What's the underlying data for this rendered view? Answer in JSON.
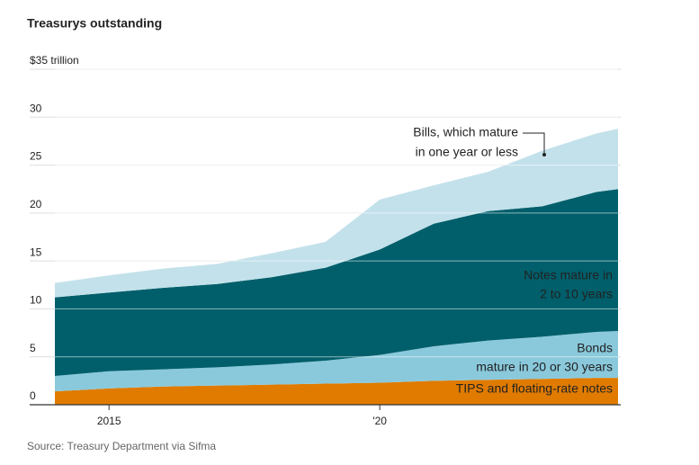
{
  "chart_data": {
    "type": "stacked-area",
    "title": "Treasurys outstanding",
    "source": "Source: Treasury Department via Sifma",
    "x": [
      2014,
      2015,
      2016,
      2017,
      2018,
      2019,
      2020,
      2021,
      2022,
      2023,
      2024,
      2024.4
    ],
    "xlim": [
      2014,
      2024.4
    ],
    "xticks": [
      2015,
      {
        "value": 2020,
        "label": "'20"
      }
    ],
    "ylim": [
      0,
      35
    ],
    "yticks": [
      0,
      5,
      10,
      15,
      20,
      25,
      30,
      {
        "value": 35,
        "label": "$35 trillion"
      }
    ],
    "grid": true,
    "series": [
      {
        "name": [
          "TIPS and floating-rate notes"
        ],
        "color": "#e07b00",
        "values": [
          1.4,
          1.7,
          1.9,
          2.0,
          2.1,
          2.2,
          2.3,
          2.5,
          2.6,
          2.7,
          2.8,
          2.8
        ]
      },
      {
        "name": [
          "Bonds",
          "mature in 20 or 30 years"
        ],
        "color": "#8ac9dc",
        "values": [
          1.6,
          1.8,
          1.8,
          1.9,
          2.1,
          2.4,
          2.9,
          3.6,
          4.1,
          4.4,
          4.8,
          4.9
        ]
      },
      {
        "name": [
          "Notes mature in",
          "2 to 10 years"
        ],
        "color": "#005f6b",
        "values": [
          8.2,
          8.2,
          8.5,
          8.7,
          9.1,
          9.7,
          11.0,
          12.8,
          13.5,
          13.6,
          14.6,
          14.8
        ]
      },
      {
        "name": [
          "Bills, which mature",
          "in one year or less"
        ],
        "color": "#c3e1eb",
        "values": [
          1.5,
          1.8,
          2.0,
          2.1,
          2.5,
          2.7,
          5.2,
          4.0,
          4.1,
          5.8,
          6.1,
          6.3
        ]
      }
    ]
  }
}
